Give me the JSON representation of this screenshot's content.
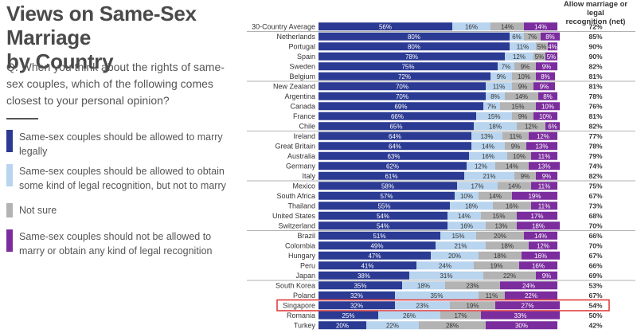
{
  "title_line1": "Views on Same-Sex Marriage",
  "title_line2": "by Country",
  "question": "Q. When you think about the rights of same-sex couples, which of the following comes closest to your personal opinion?",
  "net_header_line1": "Allow marriage or legal",
  "net_header_line2": "recognition (net)",
  "highlighted_category": "Singapore",
  "colors": {
    "allowed_marry": "#2b3a93",
    "legal_recognition": "#b8d4ee",
    "not_sure": "#b3b3b3",
    "not_allowed": "#7b2d9e",
    "highlight_border": "#e03030"
  },
  "legend": [
    {
      "label": "Same-sex couples should be allowed to marry legally",
      "color": "#2b3a93"
    },
    {
      "label": "Same-sex couples should be allowed to obtain some kind of legal recognition, but not to marry",
      "color": "#b8d4ee"
    },
    {
      "label": "Not sure",
      "color": "#b3b3b3"
    },
    {
      "label": "Same-sex couples should not be allowed to marry or obtain any kind of legal recognition",
      "color": "#7b2d9e"
    }
  ],
  "chart_data": {
    "type": "bar",
    "stacked": true,
    "orientation": "horizontal",
    "xlim": [
      0,
      100
    ],
    "categories": [
      "30-Country Average",
      "Netherlands",
      "Portugal",
      "Spain",
      "Sweden",
      "Belgium",
      "New Zealand",
      "Argentina",
      "Canada",
      "France",
      "Chile",
      "Ireland",
      "Great Britain",
      "Australia",
      "Germany",
      "Italy",
      "Mexico",
      "South Africa",
      "Thailand",
      "United States",
      "Switzerland",
      "Brazil",
      "Colombia",
      "Hungary",
      "Peru",
      "Japan",
      "South Korea",
      "Poland",
      "Singapore",
      "Romania",
      "Turkey"
    ],
    "series": [
      {
        "name": "Same-sex couples should be allowed to marry legally",
        "values": [
          56,
          80,
          80,
          78,
          75,
          72,
          70,
          70,
          69,
          66,
          65,
          64,
          64,
          63,
          62,
          61,
          58,
          57,
          55,
          54,
          54,
          51,
          49,
          47,
          41,
          38,
          35,
          32,
          32,
          25,
          20
        ]
      },
      {
        "name": "Same-sex couples should be allowed to obtain some kind of legal recognition, but not to marry",
        "values": [
          16,
          6,
          11,
          12,
          7,
          9,
          11,
          8,
          7,
          15,
          18,
          13,
          14,
          16,
          12,
          21,
          17,
          10,
          18,
          14,
          16,
          15,
          21,
          20,
          24,
          31,
          18,
          35,
          23,
          26,
          22
        ]
      },
      {
        "name": "Not sure",
        "values": [
          14,
          7,
          5,
          5,
          9,
          10,
          9,
          14,
          15,
          9,
          12,
          11,
          9,
          10,
          14,
          9,
          14,
          14,
          16,
          15,
          13,
          20,
          18,
          18,
          19,
          22,
          23,
          11,
          19,
          17,
          28
        ]
      },
      {
        "name": "Same-sex couples should not be allowed to marry or obtain any kind of legal recognition",
        "values": [
          14,
          8,
          4,
          5,
          9,
          8,
          9,
          8,
          10,
          10,
          6,
          12,
          13,
          11,
          13,
          9,
          11,
          19,
          11,
          17,
          18,
          14,
          12,
          16,
          16,
          9,
          24,
          22,
          27,
          33,
          30
        ]
      }
    ],
    "net": [
      "72%",
      "85%",
      "90%",
      "90%",
      "82%",
      "81%",
      "81%",
      "78%",
      "76%",
      "81%",
      "82%",
      "77%",
      "78%",
      "79%",
      "74%",
      "82%",
      "75%",
      "67%",
      "73%",
      "68%",
      "70%",
      "66%",
      "70%",
      "67%",
      "66%",
      "69%",
      "53%",
      "67%",
      "54%",
      "50%",
      "42%"
    ],
    "group_breaks_after": [
      "30-Country Average",
      "Belgium",
      "Chile",
      "Italy",
      "Switzerland",
      "Japan"
    ]
  }
}
